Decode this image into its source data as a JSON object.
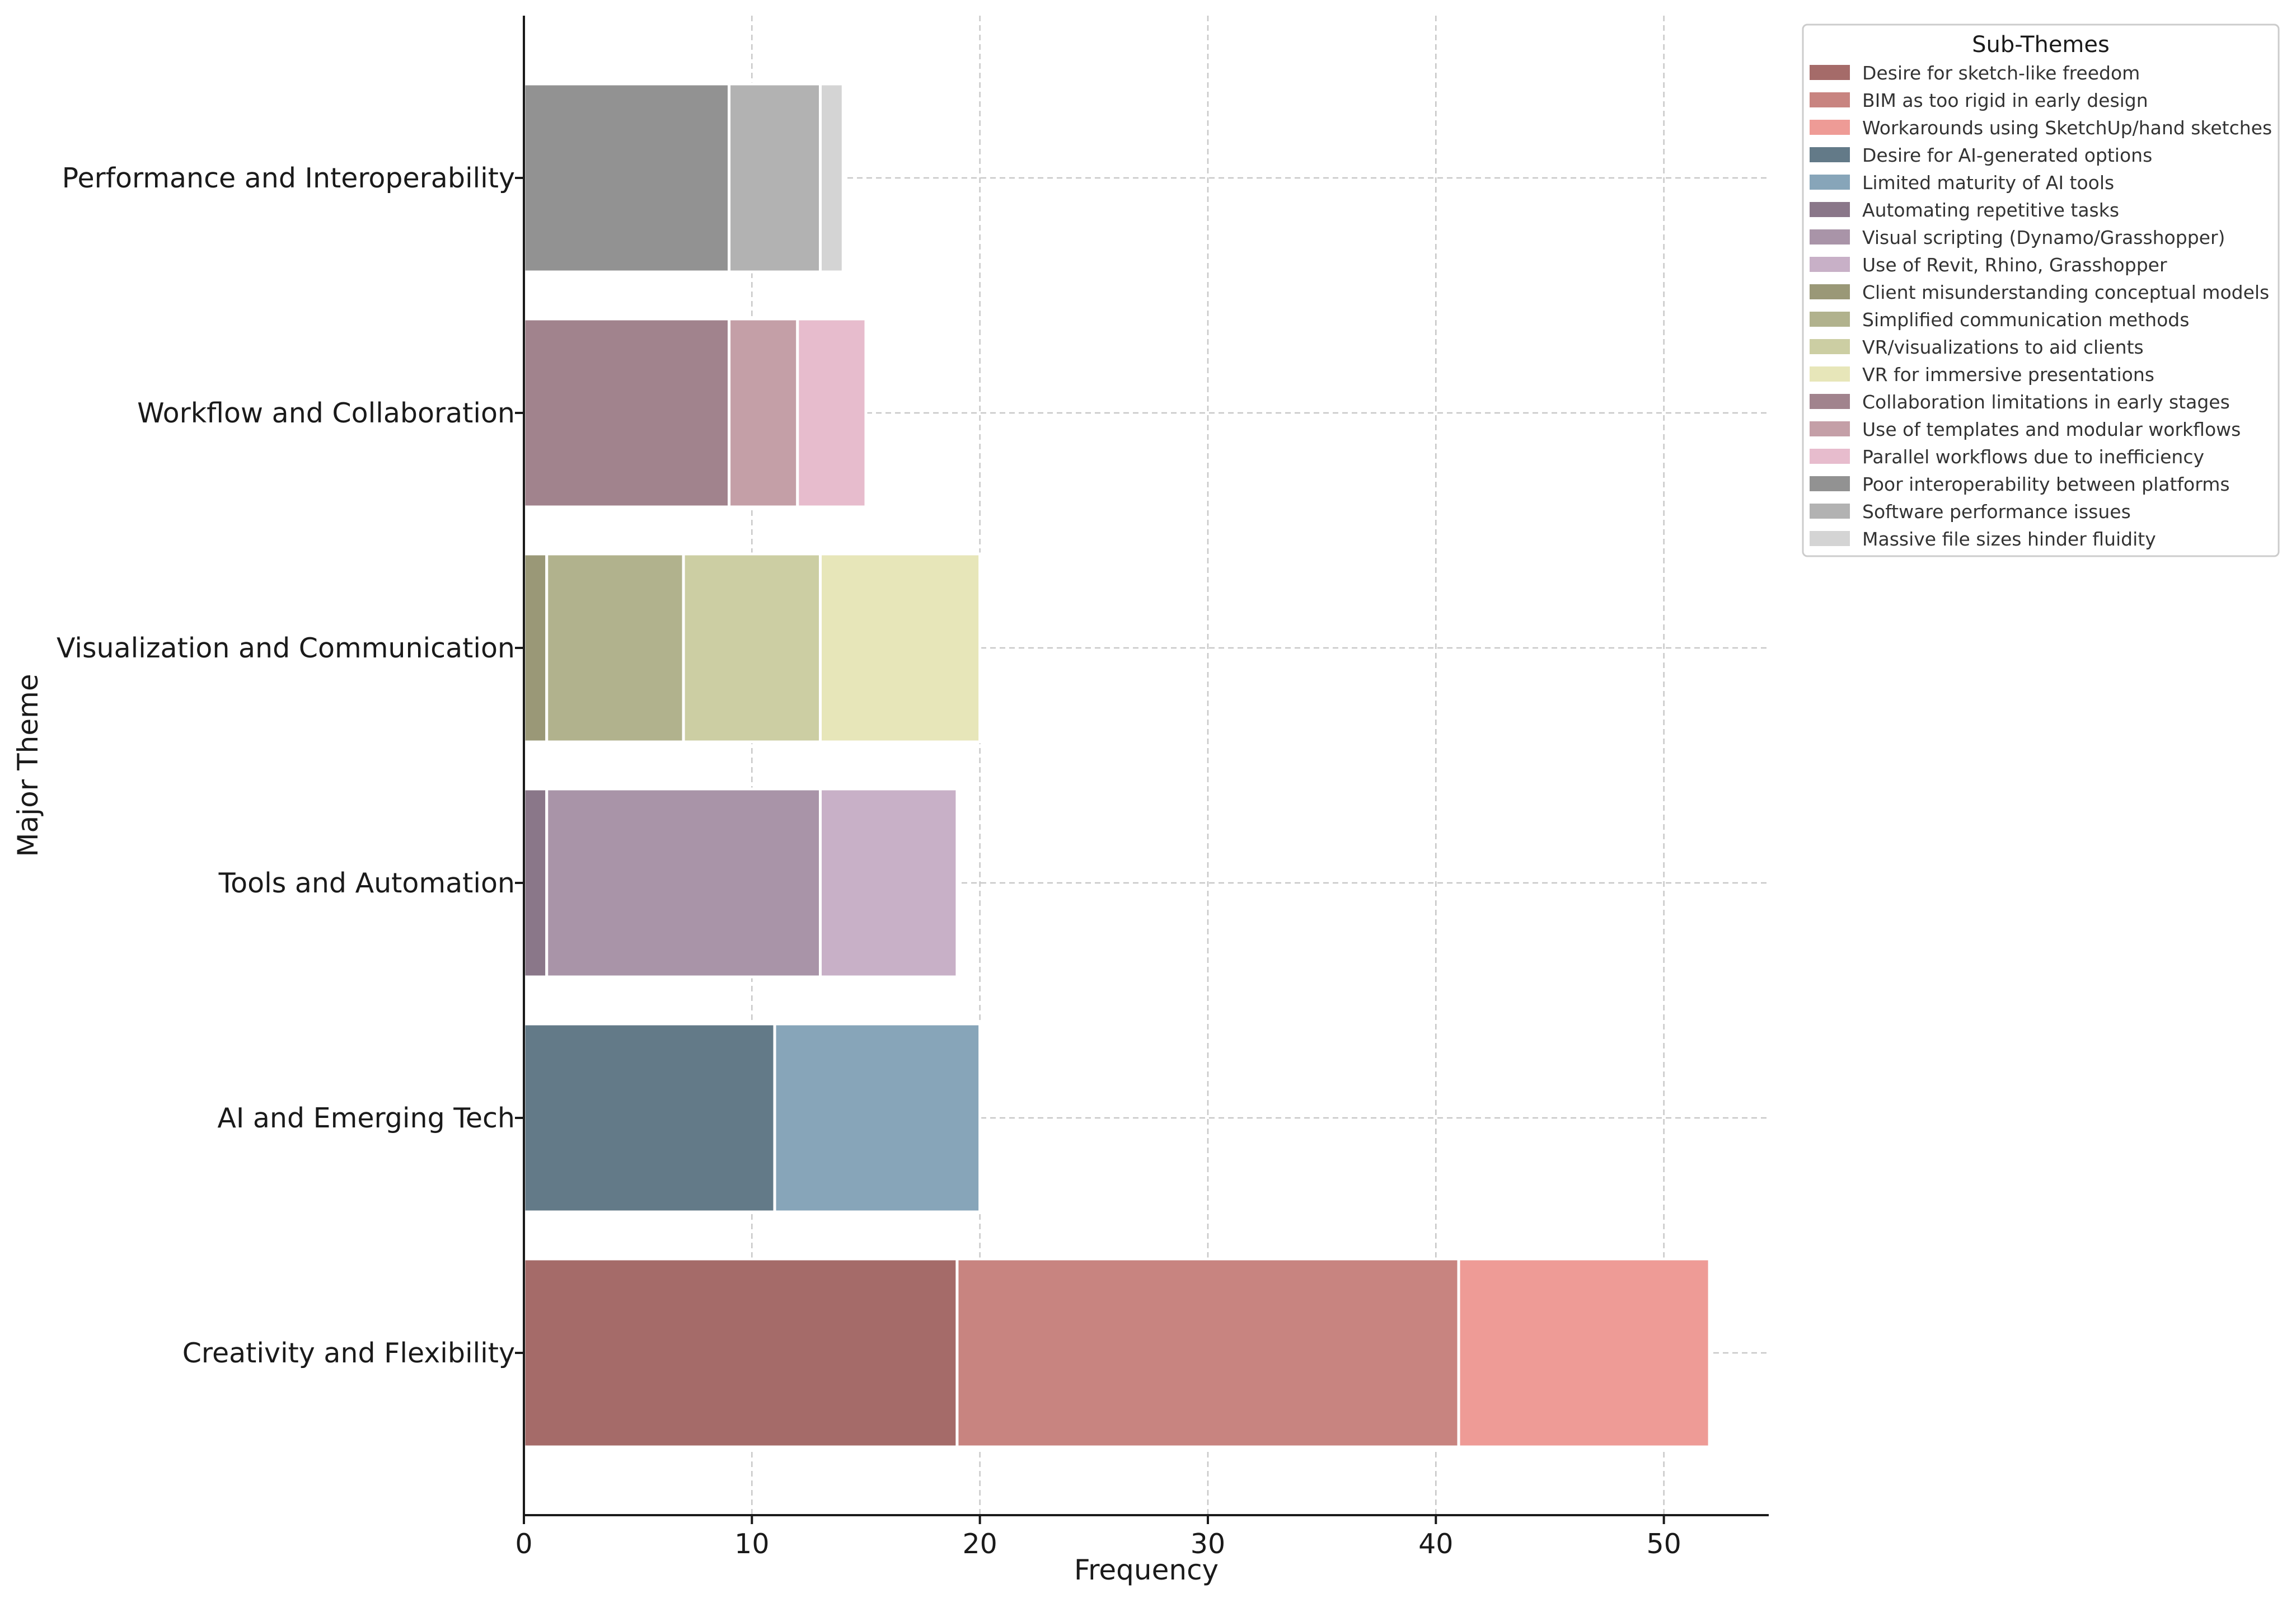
{
  "chart_data": {
    "type": "bar",
    "orientation": "horizontal",
    "stacked": true,
    "xlabel": "Frequency",
    "ylabel": "Major Theme",
    "xlim": [
      0,
      54.6
    ],
    "xticks": [
      0,
      10,
      20,
      30,
      40,
      50
    ],
    "grid": true,
    "legend_title": "Sub-Themes",
    "legend_position": "upper-right-outside",
    "categories": [
      "Creativity and Flexibility",
      "AI and Emerging Tech",
      "Tools and Automation",
      "Visualization and Communication",
      "Workflow and Collaboration",
      "Performance and Interoperability"
    ],
    "series": [
      {
        "name": "Desire for sketch-like freedom",
        "color": "#a56b69",
        "category": "Creativity and Flexibility",
        "start": 0,
        "value": 19
      },
      {
        "name": "BIM as too rigid in early design",
        "color": "#c88480",
        "category": "Creativity and Flexibility",
        "start": 19,
        "value": 22
      },
      {
        "name": "Workarounds using SketchUp/hand sketches",
        "color": "#ee9b96",
        "category": "Creativity and Flexibility",
        "start": 41,
        "value": 11
      },
      {
        "name": "Desire for AI-generated options",
        "color": "#637a88",
        "category": "AI and Emerging Tech",
        "start": 0,
        "value": 11
      },
      {
        "name": "Limited maturity of AI tools",
        "color": "#87a5b9",
        "category": "AI and Emerging Tech",
        "start": 11,
        "value": 9
      },
      {
        "name": "Automating repetitive tasks",
        "color": "#8a7789",
        "category": "Tools and Automation",
        "start": 0,
        "value": 1
      },
      {
        "name": "Visual scripting (Dynamo/Grasshopper)",
        "color": "#a994a8",
        "category": "Tools and Automation",
        "start": 1,
        "value": 12
      },
      {
        "name": "Use of Revit, Rhino, Grasshopper",
        "color": "#c8b0c7",
        "category": "Tools and Automation",
        "start": 13,
        "value": 6
      },
      {
        "name": "Client misunderstanding conceptual models",
        "color": "#9a9877",
        "category": "Visualization and Communication",
        "start": 0,
        "value": 1
      },
      {
        "name": "Simplified communication methods",
        "color": "#b1b28d",
        "category": "Visualization and Communication",
        "start": 1,
        "value": 6
      },
      {
        "name": "VR/visualizations to aid clients",
        "color": "#cccea3",
        "category": "Visualization and Communication",
        "start": 7,
        "value": 6
      },
      {
        "name": "VR for immersive presentations",
        "color": "#e7e6b9",
        "category": "Visualization and Communication",
        "start": 13,
        "value": 7
      },
      {
        "name": "Collaboration limitations in early stages",
        "color": "#a1838d",
        "category": "Workflow and Collaboration",
        "start": 0,
        "value": 9
      },
      {
        "name": "Use of templates and modular workflows",
        "color": "#c49fa7",
        "category": "Workflow and Collaboration",
        "start": 9,
        "value": 3
      },
      {
        "name": "Parallel workflows due to inefficiency",
        "color": "#e7bccd",
        "category": "Workflow and Collaboration",
        "start": 12,
        "value": 3
      },
      {
        "name": "Poor interoperability between platforms",
        "color": "#929292",
        "category": "Performance and Interoperability",
        "start": 0,
        "value": 9
      },
      {
        "name": "Software performance issues",
        "color": "#b2b2b2",
        "category": "Performance and Interoperability",
        "start": 9,
        "value": 4
      },
      {
        "name": "Massive file sizes hinder fluidity",
        "color": "#d4d4d4",
        "category": "Performance and Interoperability",
        "start": 13,
        "value": 1
      }
    ]
  }
}
